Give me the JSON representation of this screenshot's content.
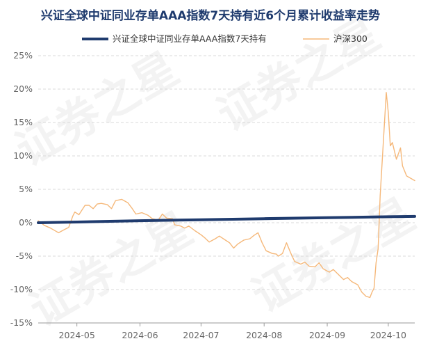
{
  "chart_data": {
    "type": "line",
    "title": "兴证全球中证同业存单AAA指数7天持有近6个月累计收益率走势",
    "xlabel": "",
    "ylabel": "",
    "watermark": "证券之星",
    "legend_position": "top",
    "grid": "horizontal-dashed",
    "ylim": [
      -15,
      25
    ],
    "yticks": [
      25,
      20,
      15,
      10,
      5,
      0,
      -5,
      -10,
      -15
    ],
    "ytick_labels": [
      "25%",
      "20%",
      "15%",
      "10%",
      "5%",
      "0%",
      "-5%",
      "-10%",
      "-15%"
    ],
    "xlim": [
      "2024-04-12",
      "2024-10-14"
    ],
    "xticks": [
      {
        "date": "2024-05-01",
        "label": "2024-05"
      },
      {
        "date": "2024-06-01",
        "label": "2024-06"
      },
      {
        "date": "2024-07-01",
        "label": "2024-07"
      },
      {
        "date": "2024-08-01",
        "label": "2024-08"
      },
      {
        "date": "2024-09-01",
        "label": "2024-09"
      },
      {
        "date": "2024-10-01",
        "label": "2024-10"
      }
    ],
    "series": [
      {
        "name": "兴证全球中证同业存单AAA指数7天持有",
        "color": "#1f3b6e",
        "style": "thick",
        "points": [
          [
            "2024-04-12",
            0.0
          ],
          [
            "2024-05-01",
            0.1
          ],
          [
            "2024-06-01",
            0.3
          ],
          [
            "2024-07-01",
            0.45
          ],
          [
            "2024-08-01",
            0.6
          ],
          [
            "2024-09-01",
            0.75
          ],
          [
            "2024-10-01",
            0.9
          ],
          [
            "2024-10-14",
            0.95
          ]
        ]
      },
      {
        "name": "沪深300",
        "color": "#f5b87a",
        "style": "thin",
        "points": [
          [
            "2024-04-12",
            0.3
          ],
          [
            "2024-04-15",
            -0.4
          ],
          [
            "2024-04-18",
            -0.8
          ],
          [
            "2024-04-22",
            -1.5
          ],
          [
            "2024-04-25",
            -1.0
          ],
          [
            "2024-04-27",
            -0.7
          ],
          [
            "2024-04-29",
            1.0
          ],
          [
            "2024-04-30",
            1.6
          ],
          [
            "2024-05-02",
            1.2
          ],
          [
            "2024-05-05",
            2.6
          ],
          [
            "2024-05-07",
            2.6
          ],
          [
            "2024-05-09",
            2.1
          ],
          [
            "2024-05-11",
            2.8
          ],
          [
            "2024-05-13",
            2.9
          ],
          [
            "2024-05-16",
            2.7
          ],
          [
            "2024-05-18",
            2.1
          ],
          [
            "2024-05-20",
            3.3
          ],
          [
            "2024-05-23",
            3.5
          ],
          [
            "2024-05-26",
            3.0
          ],
          [
            "2024-05-28",
            2.2
          ],
          [
            "2024-05-30",
            1.3
          ],
          [
            "2024-06-02",
            1.5
          ],
          [
            "2024-06-05",
            1.1
          ],
          [
            "2024-06-07",
            0.6
          ],
          [
            "2024-06-10",
            0.4
          ],
          [
            "2024-06-12",
            1.3
          ],
          [
            "2024-06-14",
            0.7
          ],
          [
            "2024-06-17",
            0.6
          ],
          [
            "2024-06-18",
            -0.3
          ],
          [
            "2024-06-21",
            -0.5
          ],
          [
            "2024-06-23",
            -0.8
          ],
          [
            "2024-06-25",
            -0.5
          ],
          [
            "2024-06-28",
            -1.2
          ],
          [
            "2024-07-01",
            -1.8
          ],
          [
            "2024-07-03",
            -2.3
          ],
          [
            "2024-07-05",
            -2.9
          ],
          [
            "2024-07-08",
            -2.4
          ],
          [
            "2024-07-10",
            -2.0
          ],
          [
            "2024-07-13",
            -2.6
          ],
          [
            "2024-07-15",
            -3.0
          ],
          [
            "2024-07-17",
            -3.8
          ],
          [
            "2024-07-19",
            -3.2
          ],
          [
            "2024-07-22",
            -2.6
          ],
          [
            "2024-07-25",
            -2.4
          ],
          [
            "2024-07-27",
            -1.9
          ],
          [
            "2024-07-29",
            -1.5
          ],
          [
            "2024-07-31",
            -3.0
          ],
          [
            "2024-08-02",
            -4.2
          ],
          [
            "2024-08-05",
            -4.6
          ],
          [
            "2024-08-07",
            -4.7
          ],
          [
            "2024-08-08",
            -5.0
          ],
          [
            "2024-08-10",
            -4.6
          ],
          [
            "2024-08-12",
            -3.0
          ],
          [
            "2024-08-14",
            -4.5
          ],
          [
            "2024-08-16",
            -5.8
          ],
          [
            "2024-08-19",
            -6.2
          ],
          [
            "2024-08-21",
            -5.9
          ],
          [
            "2024-08-23",
            -6.5
          ],
          [
            "2024-08-26",
            -6.6
          ],
          [
            "2024-08-28",
            -6.0
          ],
          [
            "2024-08-30",
            -6.9
          ],
          [
            "2024-09-02",
            -7.4
          ],
          [
            "2024-09-04",
            -7.0
          ],
          [
            "2024-09-06",
            -7.6
          ],
          [
            "2024-09-09",
            -8.5
          ],
          [
            "2024-09-11",
            -8.2
          ],
          [
            "2024-09-13",
            -8.8
          ],
          [
            "2024-09-16",
            -9.3
          ],
          [
            "2024-09-18",
            -10.4
          ],
          [
            "2024-09-20",
            -11.0
          ],
          [
            "2024-09-22",
            -11.2
          ],
          [
            "2024-09-23",
            -10.4
          ],
          [
            "2024-09-24",
            -9.8
          ],
          [
            "2024-09-25",
            -6.0
          ],
          [
            "2024-09-26",
            -3.9
          ],
          [
            "2024-09-27",
            4.0
          ],
          [
            "2024-09-30",
            19.5
          ],
          [
            "2024-10-01",
            16.5
          ],
          [
            "2024-10-02",
            11.5
          ],
          [
            "2024-10-03",
            12.0
          ],
          [
            "2024-10-05",
            9.5
          ],
          [
            "2024-10-07",
            11.2
          ],
          [
            "2024-10-08",
            8.5
          ],
          [
            "2024-10-10",
            7.0
          ],
          [
            "2024-10-14",
            6.3
          ]
        ]
      }
    ]
  }
}
